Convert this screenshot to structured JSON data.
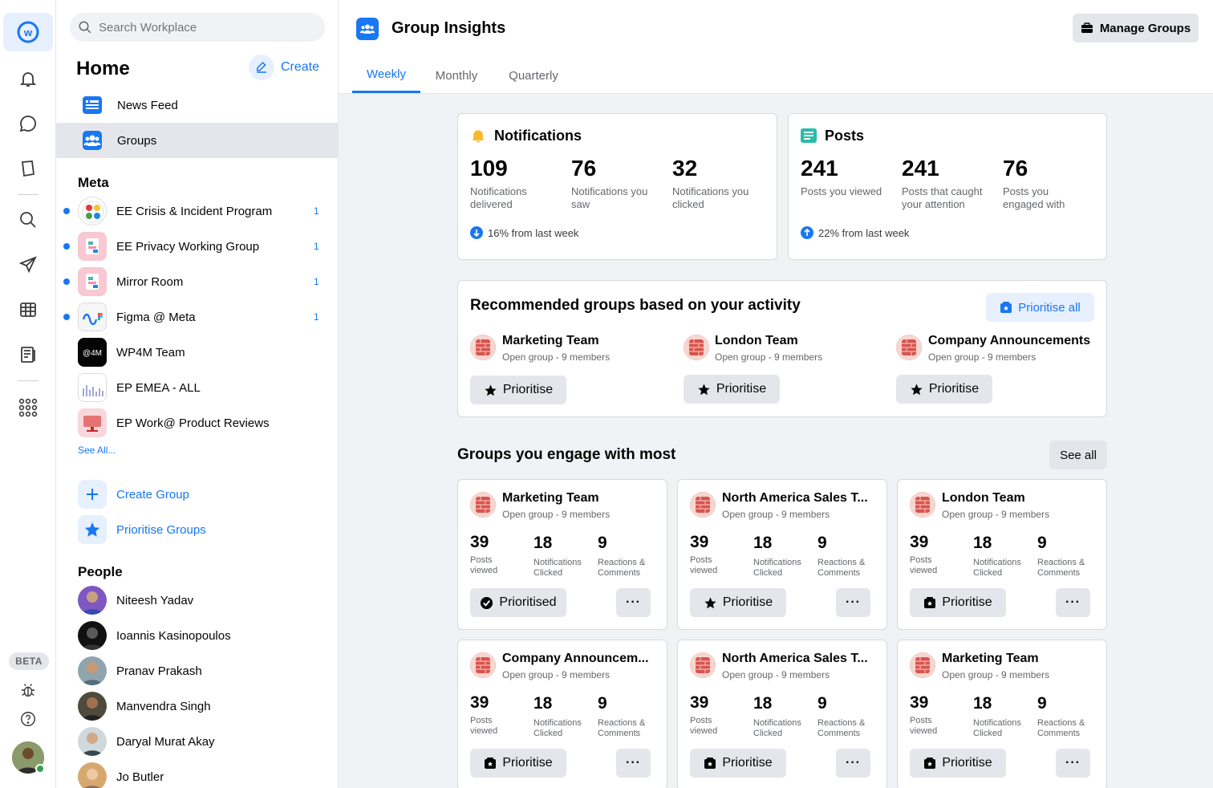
{
  "rail": {
    "beta_label": "BETA"
  },
  "sidebar": {
    "search_placeholder": "Search Workplace",
    "home_title": "Home",
    "create_label": "Create",
    "nav": [
      {
        "label": "News Feed"
      },
      {
        "label": "Groups"
      }
    ],
    "meta_section": "Meta",
    "groups": [
      {
        "name": "EE Crisis & Incident Program",
        "count": "1"
      },
      {
        "name": "EE Privacy Working Group",
        "count": "1"
      },
      {
        "name": "Mirror Room",
        "count": "1"
      },
      {
        "name": "Figma @ Meta",
        "count": "1"
      },
      {
        "name": "WP4M Team",
        "count": ""
      },
      {
        "name": "EP EMEA - ALL",
        "count": ""
      },
      {
        "name": "EP Work@ Product Reviews",
        "count": ""
      }
    ],
    "see_all": "See All...",
    "actions": [
      {
        "label": "Create Group"
      },
      {
        "label": "Prioritise Groups"
      }
    ],
    "people_section": "People",
    "people": [
      {
        "name": "Niteesh Yadav"
      },
      {
        "name": "Ioannis Kasinopoulos"
      },
      {
        "name": "Pranav Prakash"
      },
      {
        "name": "Manvendra Singh"
      },
      {
        "name": "Daryal Murat Akay"
      },
      {
        "name": "Jo Butler"
      }
    ]
  },
  "header": {
    "title": "Group Insights",
    "manage_label": "Manage Groups",
    "tabs": [
      {
        "label": "Weekly"
      },
      {
        "label": "Monthly"
      },
      {
        "label": "Quarterly"
      }
    ]
  },
  "notifications": {
    "title": "Notifications",
    "stats": [
      {
        "value": "109",
        "label": "Notifications delivered"
      },
      {
        "value": "76",
        "label": "Notifications you saw"
      },
      {
        "value": "32",
        "label": "Notifications you clicked"
      }
    ],
    "trend": "16% from last week"
  },
  "posts": {
    "title": "Posts",
    "stats": [
      {
        "value": "241",
        "label": "Posts you viewed"
      },
      {
        "value": "241",
        "label": "Posts that caught your attention"
      },
      {
        "value": "76",
        "label": "Posts you engaged with"
      }
    ],
    "trend": "22% from last week"
  },
  "recommended": {
    "title": "Recommended groups based on your activity",
    "prioritise_all": "Prioritise all",
    "groups": [
      {
        "name": "Marketing Team",
        "sub": "Open group - 9 members",
        "button": "Prioritise"
      },
      {
        "name": "London Team",
        "sub": "Open group - 9 members",
        "button": "Prioritise"
      },
      {
        "name": "Company Announcements",
        "sub": "Open group - 9 members",
        "button": "Prioritise"
      }
    ]
  },
  "engage": {
    "title": "Groups you engage with most",
    "see_all": "See all",
    "metric_labels": [
      "Posts viewed",
      "Notifications Clicked",
      "Reactions & Comments"
    ],
    "more_label": "···",
    "cards": [
      {
        "name": "Marketing Team",
        "sub": "Open group - 9 members",
        "posts": "39",
        "notifs": "18",
        "reactions": "9",
        "button": "Prioritised"
      },
      {
        "name": "North America Sales T...",
        "sub": "Open group - 9 members",
        "posts": "39",
        "notifs": "18",
        "reactions": "9",
        "button": "Prioritise"
      },
      {
        "name": "London Team",
        "sub": "Open group - 9 members",
        "posts": "39",
        "notifs": "18",
        "reactions": "9",
        "button": "Prioritise"
      },
      {
        "name": "Company Announcem...",
        "sub": "Open group - 9 members",
        "posts": "39",
        "notifs": "18",
        "reactions": "9",
        "button": "Prioritise"
      },
      {
        "name": "North America Sales T...",
        "sub": "Open group - 9 members",
        "posts": "39",
        "notifs": "18",
        "reactions": "9",
        "button": "Prioritise"
      },
      {
        "name": "Marketing Team",
        "sub": "Open group - 9 members",
        "posts": "39",
        "notifs": "18",
        "reactions": "9",
        "button": "Prioritise"
      }
    ]
  },
  "colors": {
    "accent": "#1877f2",
    "background": "#f0f2f5",
    "notif_bell": "#f7b928",
    "posts_icon": "#2abba7"
  }
}
